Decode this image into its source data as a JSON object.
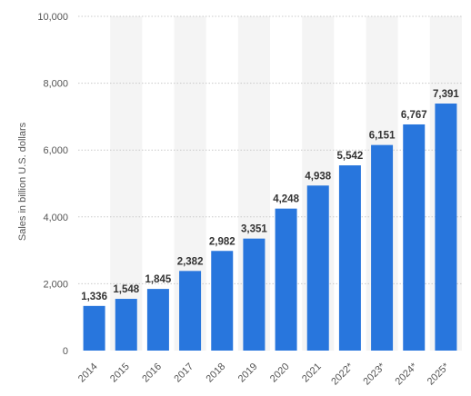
{
  "chart_data": {
    "type": "bar",
    "categories": [
      "2014",
      "2015",
      "2016",
      "2017",
      "2018",
      "2019",
      "2020",
      "2021",
      "2022*",
      "2023*",
      "2024*",
      "2025*"
    ],
    "values": [
      1336,
      1548,
      1845,
      2382,
      2982,
      3351,
      4248,
      4938,
      5542,
      6151,
      6767,
      7391
    ],
    "value_labels": [
      "1,336",
      "1,548",
      "1,845",
      "2,382",
      "2,982",
      "3,351",
      "4,248",
      "4,938",
      "5,542",
      "6,151",
      "6,767",
      "7,391"
    ],
    "ylabel": "Sales in billion U.S. dollars",
    "ylim": [
      0,
      10000
    ],
    "yticks": [
      0,
      2000,
      4000,
      6000,
      8000,
      10000
    ],
    "ytick_labels": [
      "0",
      "2,000",
      "4,000",
      "6,000",
      "8,000",
      "10,000"
    ],
    "grid": true,
    "bar_color": "#2876dd",
    "band_color": "#f4f4f4"
  }
}
